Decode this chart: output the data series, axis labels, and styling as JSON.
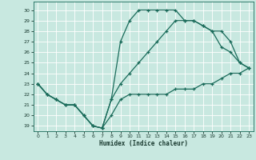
{
  "xlabel": "Humidex (Indice chaleur)",
  "background_color": "#c8e8e0",
  "grid_color": "#b0d8d0",
  "line_color": "#1a6b5a",
  "xlim": [
    -0.5,
    23.5
  ],
  "ylim": [
    18.5,
    30.8
  ],
  "xticks": [
    0,
    1,
    2,
    3,
    4,
    5,
    6,
    7,
    8,
    9,
    10,
    11,
    12,
    13,
    14,
    15,
    16,
    17,
    18,
    19,
    20,
    21,
    22,
    23
  ],
  "yticks": [
    19,
    20,
    21,
    22,
    23,
    24,
    25,
    26,
    27,
    28,
    29,
    30
  ],
  "curve1_x": [
    0,
    1,
    2,
    3,
    4,
    5,
    6,
    7,
    8,
    9,
    10,
    11,
    12,
    13,
    14,
    15,
    16,
    17,
    18,
    19,
    20,
    21,
    22,
    23
  ],
  "curve1_y": [
    23,
    22,
    21.5,
    21,
    21,
    20,
    19,
    18.8,
    20,
    21.5,
    22,
    22,
    22,
    22,
    22,
    22.5,
    22.5,
    22.5,
    23,
    23,
    23.5,
    24,
    24,
    24.5
  ],
  "curve2_x": [
    0,
    1,
    2,
    3,
    4,
    5,
    6,
    7,
    8,
    9,
    10,
    11,
    12,
    13,
    14,
    15,
    16,
    17,
    18,
    19,
    20,
    21,
    22,
    23
  ],
  "curve2_y": [
    23,
    22,
    21.5,
    21,
    21,
    20,
    19,
    18.8,
    21.5,
    23,
    24,
    25,
    26,
    27,
    28,
    29,
    29,
    29,
    28.5,
    28,
    26.5,
    26,
    25,
    24.5
  ],
  "curve3_x": [
    0,
    1,
    2,
    3,
    4,
    5,
    6,
    7,
    8,
    9,
    10,
    11,
    12,
    13,
    14,
    15,
    16,
    17,
    18,
    19,
    20,
    21,
    22,
    23
  ],
  "curve3_y": [
    23,
    22,
    21.5,
    21,
    21,
    20,
    19,
    18.8,
    21.5,
    27,
    29,
    30,
    30,
    30,
    30,
    30,
    29,
    29,
    28.5,
    28,
    28,
    27,
    25,
    24.5
  ]
}
